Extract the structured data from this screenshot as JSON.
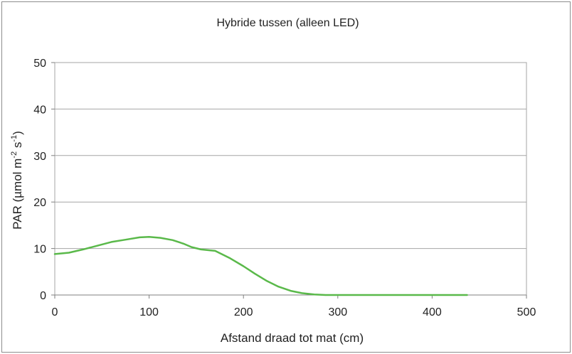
{
  "chart_data": {
    "type": "line",
    "title": "Hybride tussen (alleen LED)",
    "xlabel": "Afstand draad tot mat (cm)",
    "ylabel": {
      "prefix": "PAR  (µmol m",
      "sup1": "-2",
      "middle": " s",
      "sup2": "-1",
      "suffix": ")"
    },
    "xlim": [
      0,
      500
    ],
    "ylim": [
      0,
      50
    ],
    "xticks": [
      "0",
      "100",
      "200",
      "300",
      "400",
      "500"
    ],
    "yticks": [
      "0",
      "10",
      "20",
      "30",
      "40",
      "50"
    ],
    "grid": "horizontal",
    "legend": "none",
    "series": [
      {
        "color": "#5ab94a",
        "x": [
          0,
          15,
          30,
          45,
          60,
          75,
          90,
          100,
          112,
          125,
          137,
          145,
          155,
          165,
          170,
          185,
          200,
          212,
          225,
          237,
          250,
          262,
          275,
          287,
          300,
          325,
          350,
          375,
          400,
          425,
          437
        ],
        "y": [
          8.8,
          9.1,
          9.8,
          10.6,
          11.4,
          11.9,
          12.4,
          12.5,
          12.3,
          11.8,
          11.0,
          10.3,
          9.8,
          9.6,
          9.5,
          8.0,
          6.2,
          4.6,
          3.0,
          1.8,
          0.9,
          0.4,
          0.1,
          0.0,
          0.0,
          0.0,
          0.0,
          0.0,
          0.0,
          0.0,
          0.0
        ]
      }
    ]
  }
}
